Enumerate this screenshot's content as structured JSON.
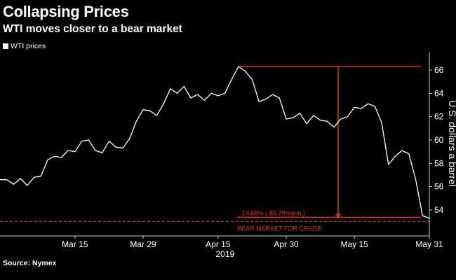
{
  "header": {
    "title": "Collapsing Prices",
    "subtitle": "WTI moves closer to a bear market"
  },
  "legend": {
    "label": "WTI prices"
  },
  "source": "Source: Nymex",
  "colors": {
    "line": "#ffffff",
    "annotation": "#e03030",
    "background": "#000000"
  },
  "chart_data": {
    "type": "line",
    "title": "Collapsing Prices",
    "subtitle": "WTI moves closer to a bear market",
    "xlabel": "2019",
    "ylabel": "U.S. dollars a barrel",
    "ylim": [
      52.5,
      67.5
    ],
    "yticks": [
      54,
      56,
      58,
      60,
      62,
      64,
      66
    ],
    "xtick_labels": [
      "Mar 15",
      "Mar 29",
      "Apr 15",
      "Apr 30",
      "May 15",
      "May 31"
    ],
    "xtick_positions": [
      11,
      21,
      32,
      42,
      52,
      63
    ],
    "year_label": "2019",
    "series": [
      {
        "name": "WTI prices",
        "values": [
          56.6,
          56.6,
          56.2,
          56.7,
          56.1,
          56.8,
          56.9,
          58.3,
          58.6,
          58.5,
          59.1,
          59.0,
          59.9,
          60.0,
          59.1,
          58.9,
          59.9,
          59.4,
          59.3,
          60.1,
          61.6,
          62.6,
          62.5,
          62.1,
          63.1,
          64.4,
          64.0,
          64.6,
          63.6,
          63.9,
          63.4,
          64.0,
          63.8,
          64.0,
          65.2,
          66.3,
          65.9,
          65.2,
          63.3,
          63.5,
          63.9,
          63.6,
          61.8,
          61.9,
          62.3,
          61.4,
          62.1,
          61.7,
          61.6,
          61.1,
          61.8,
          62.0,
          62.8,
          62.7,
          63.1,
          62.9,
          61.5,
          57.9,
          58.6,
          59.1,
          58.8,
          56.6,
          53.5,
          53.3
        ]
      }
    ],
    "annotations": {
      "peak_value": 66.3,
      "bear_threshold": 53.2,
      "current_value": 53.2,
      "drop_label": "-19.68% (-85.79%ann.)",
      "bear_label": "BEAR MARKET FOR CRUDE"
    }
  }
}
